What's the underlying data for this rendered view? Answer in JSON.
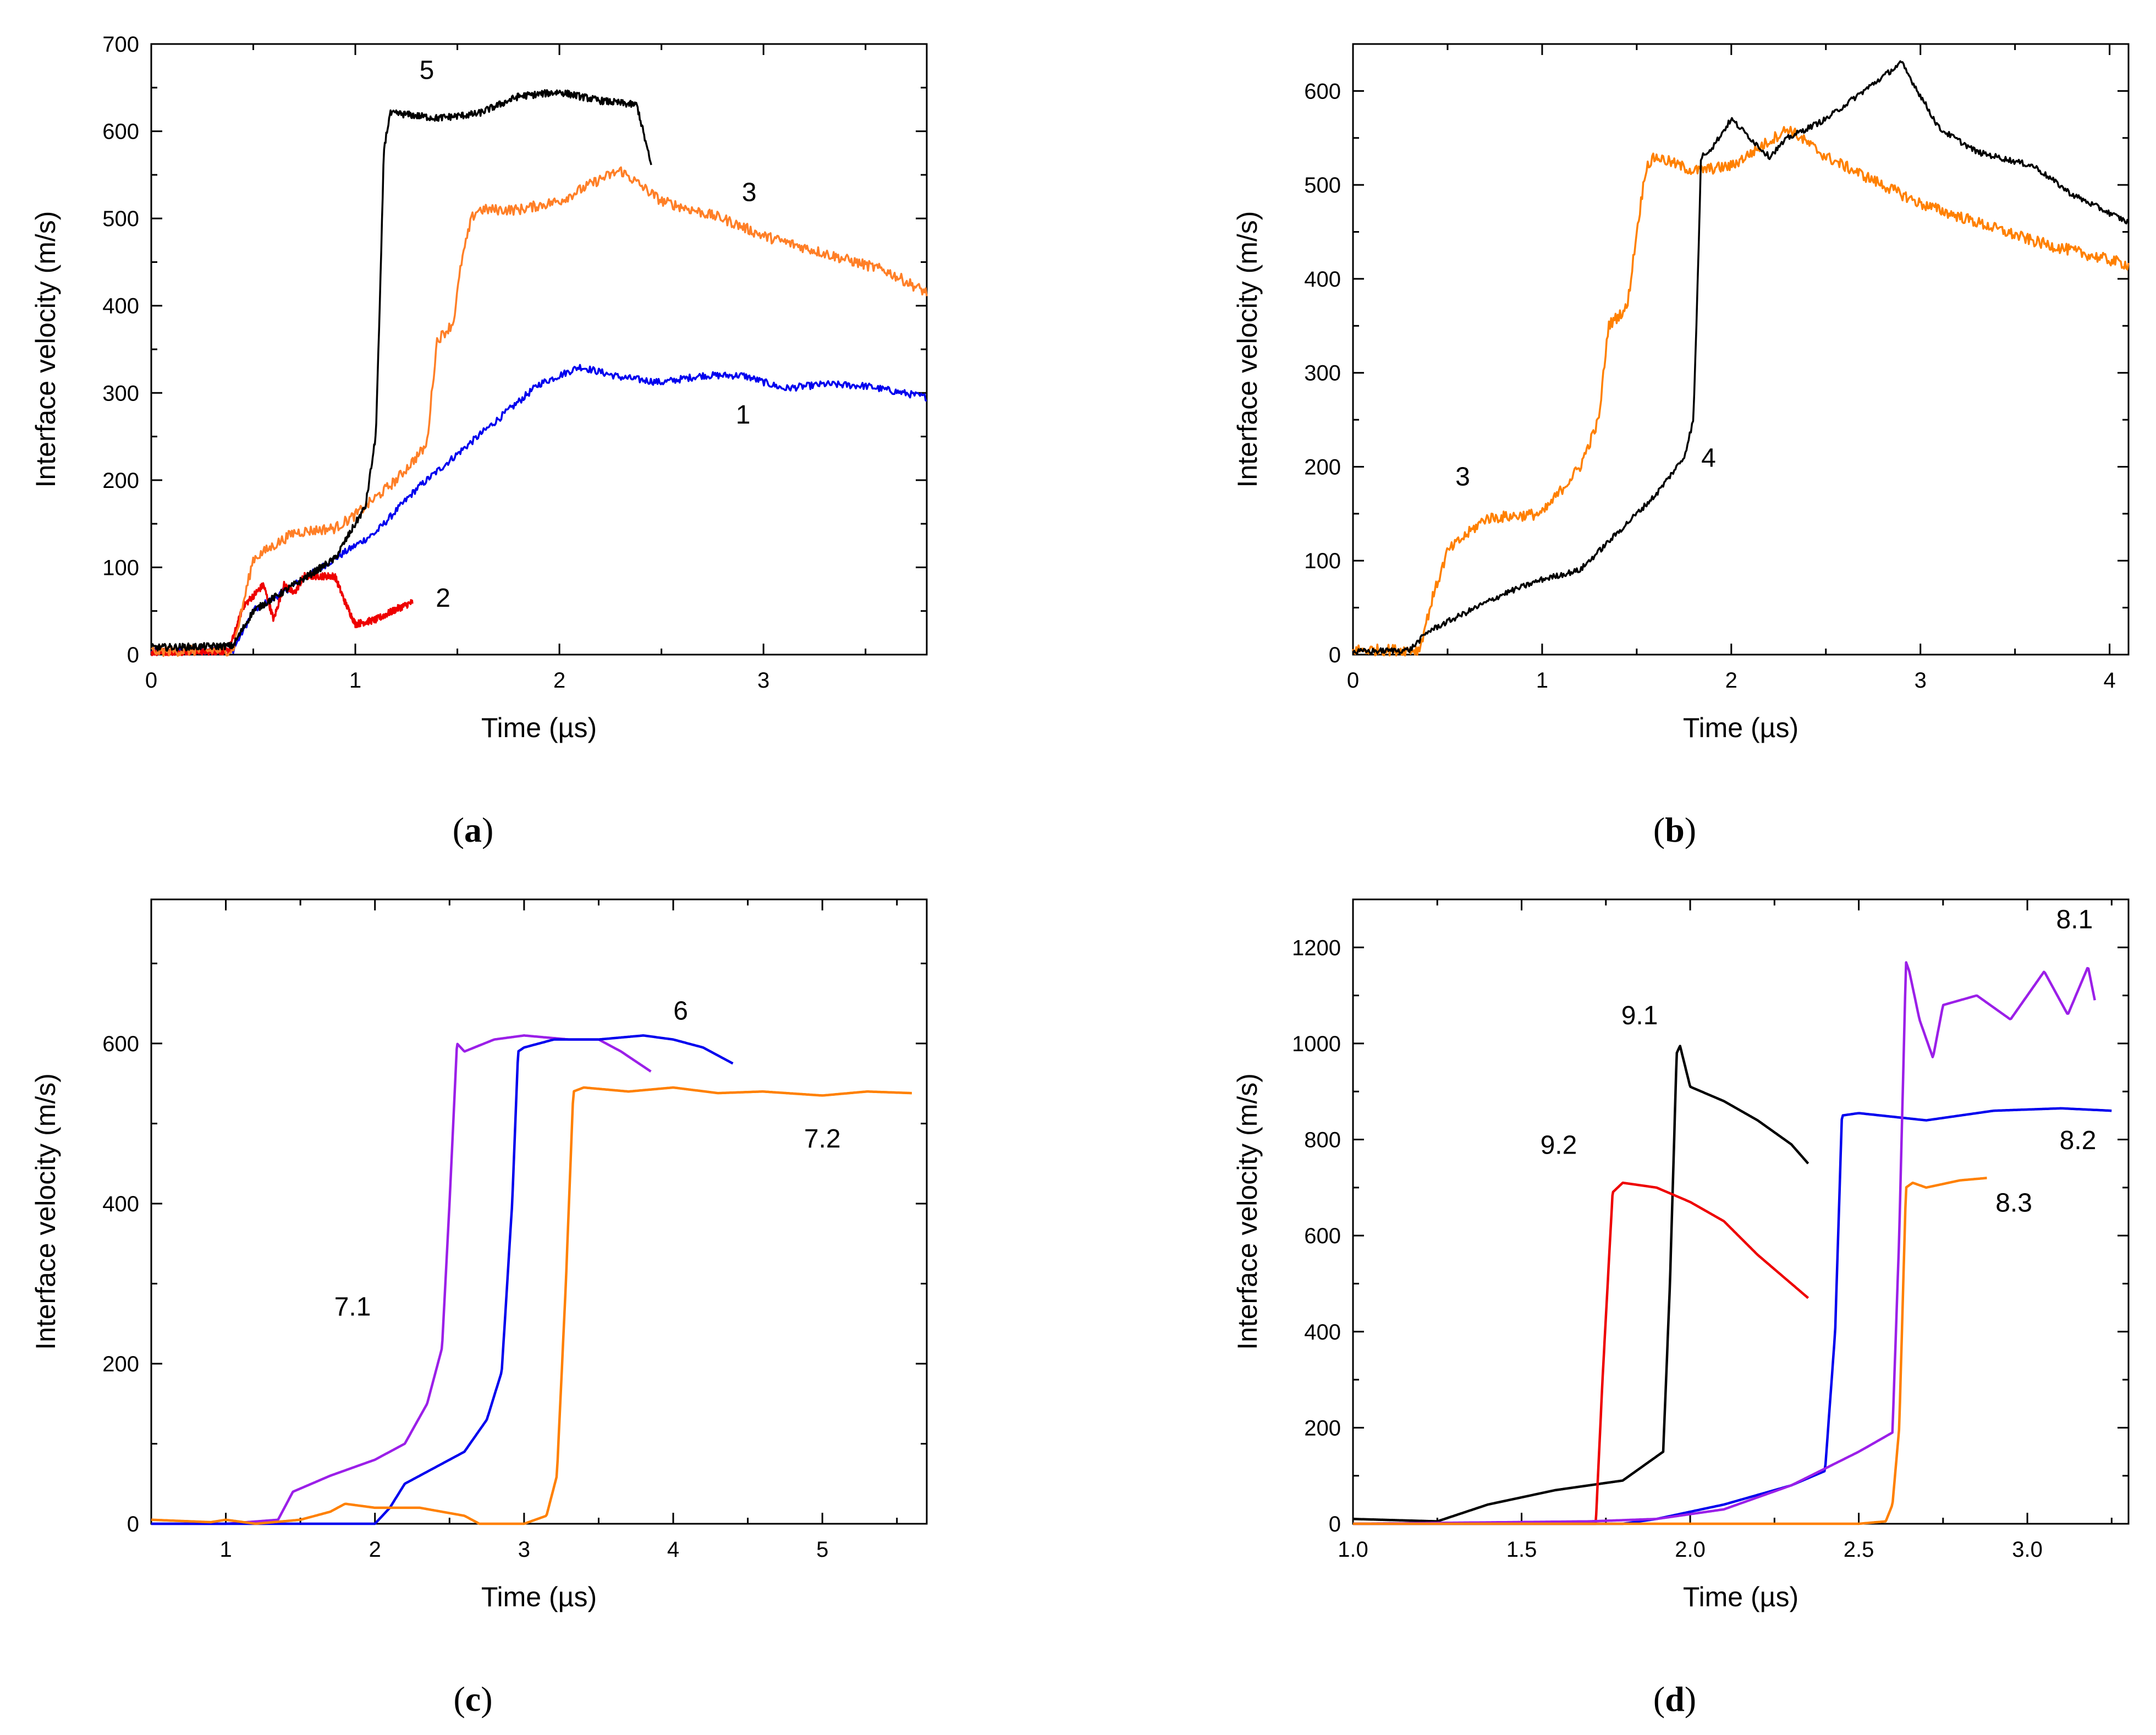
{
  "chart_data": [
    {
      "type": "line",
      "caption": "a",
      "xlabel": "Time (µs)",
      "ylabel": "Interface velocity (m/s)",
      "xlim": [
        0,
        3.8
      ],
      "ylim": [
        0,
        700
      ],
      "xticks": [
        0,
        1,
        2,
        3
      ],
      "yticks": [
        0,
        100,
        200,
        300,
        400,
        500,
        600,
        700
      ],
      "series": [
        {
          "name": "1",
          "color": "#0000ee",
          "noise": 4,
          "x": [
            0,
            0.4,
            0.5,
            0.7,
            0.9,
            1.1,
            1.3,
            1.5,
            1.7,
            1.9,
            2.1,
            2.3,
            2.5,
            2.7,
            2.9,
            3.1,
            3.3,
            3.5,
            3.8
          ],
          "y": [
            3,
            5,
            50,
            80,
            110,
            140,
            190,
            230,
            270,
            310,
            330,
            318,
            312,
            320,
            320,
            305,
            310,
            308,
            295
          ]
        },
        {
          "name": "2",
          "color": "#ee0000",
          "noise": 4,
          "x": [
            0,
            0.38,
            0.45,
            0.55,
            0.6,
            0.65,
            0.7,
            0.75,
            0.9,
            0.95,
            1.0,
            1.1,
            1.2,
            1.28
          ],
          "y": [
            3,
            4,
            55,
            80,
            40,
            80,
            70,
            90,
            90,
            60,
            35,
            40,
            52,
            60
          ]
        },
        {
          "name": "3",
          "color": "#ff7f27",
          "noise": 6,
          "x": [
            0,
            0.4,
            0.5,
            0.7,
            0.9,
            1.0,
            1.2,
            1.35,
            1.4,
            1.48,
            1.52,
            1.57,
            1.6,
            1.8,
            2.0,
            2.2,
            2.3,
            2.5,
            2.8,
            3.0,
            3.3,
            3.6,
            3.8
          ],
          "y": [
            4,
            5,
            110,
            140,
            145,
            160,
            200,
            240,
            360,
            380,
            450,
            500,
            510,
            510,
            520,
            545,
            555,
            520,
            500,
            480,
            460,
            440,
            415
          ]
        },
        {
          "name": "5",
          "color": "#000000",
          "noise": 4,
          "x": [
            0,
            0.4,
            0.5,
            0.7,
            0.9,
            1.05,
            1.1,
            1.12,
            1.14,
            1.17,
            1.22,
            1.4,
            1.6,
            1.8,
            2.0,
            2.2,
            2.38,
            2.42,
            2.45
          ],
          "y": [
            8,
            10,
            50,
            80,
            110,
            170,
            250,
            400,
            580,
            620,
            620,
            615,
            620,
            640,
            645,
            635,
            630,
            590,
            560
          ]
        }
      ],
      "labels": [
        {
          "text": "5",
          "x": 1.35,
          "y": 660
        },
        {
          "text": "3",
          "x": 2.93,
          "y": 520
        },
        {
          "text": "1",
          "x": 2.9,
          "y": 265
        },
        {
          "text": "2",
          "x": 1.43,
          "y": 55
        }
      ]
    },
    {
      "type": "line",
      "caption": "b",
      "xlabel": "Time (µs)",
      "ylabel": "Interface velocity (m/s)",
      "xlim": [
        0,
        4.1
      ],
      "ylim": [
        0,
        650
      ],
      "xticks": [
        0,
        1,
        2,
        3,
        4
      ],
      "yticks": [
        0,
        100,
        200,
        300,
        400,
        500,
        600
      ],
      "series": [
        {
          "name": "3",
          "color": "#ff8000",
          "noise": 6,
          "x": [
            0,
            0.35,
            0.42,
            0.5,
            0.7,
            1.0,
            1.2,
            1.3,
            1.35,
            1.45,
            1.5,
            1.55,
            1.6,
            1.8,
            2.0,
            2.3,
            2.5,
            2.8,
            3.0,
            3.3,
            3.6,
            3.9,
            4.1
          ],
          "y": [
            5,
            5,
            60,
            110,
            145,
            150,
            200,
            250,
            350,
            370,
            450,
            520,
            530,
            515,
            520,
            560,
            530,
            500,
            480,
            460,
            440,
            425,
            415
          ]
        },
        {
          "name": "4",
          "color": "#000000",
          "noise": 3,
          "x": [
            0,
            0.3,
            0.4,
            0.6,
            0.8,
            1.0,
            1.2,
            1.4,
            1.6,
            1.75,
            1.8,
            1.82,
            1.84,
            1.9,
            2.0,
            2.2,
            2.3,
            2.5,
            2.7,
            2.9,
            3.1,
            3.3,
            3.6,
            3.8,
            4.0,
            4.1
          ],
          "y": [
            3,
            5,
            25,
            45,
            65,
            80,
            90,
            130,
            170,
            210,
            250,
            380,
            530,
            540,
            570,
            530,
            550,
            570,
            600,
            630,
            560,
            535,
            520,
            490,
            470,
            460
          ]
        }
      ],
      "labels": [
        {
          "text": "3",
          "x": 0.58,
          "y": 180
        },
        {
          "text": "4",
          "x": 1.88,
          "y": 200
        }
      ]
    },
    {
      "type": "line",
      "caption": "c",
      "xlabel": "Time (µs)",
      "ylabel": "Interface velocity (m/s)",
      "xlim": [
        0.5,
        5.7
      ],
      "ylim": [
        0,
        780
      ],
      "xticks": [
        1,
        2,
        3,
        4,
        5
      ],
      "yticks": [
        0,
        200,
        400,
        600
      ],
      "series": [
        {
          "name": "7.1",
          "color": "#9b1fe8",
          "noise": 0,
          "x": [
            0.5,
            1.0,
            1.35,
            1.45,
            1.7,
            2.0,
            2.2,
            2.35,
            2.45,
            2.5,
            2.55,
            2.6,
            2.8,
            3.0,
            3.3,
            3.5,
            3.65,
            3.85
          ],
          "y": [
            0,
            0,
            5,
            40,
            60,
            80,
            100,
            150,
            220,
            400,
            600,
            590,
            605,
            610,
            605,
            605,
            590,
            565
          ]
        },
        {
          "name": "6",
          "color": "#0000ee",
          "noise": 0,
          "x": [
            0.5,
            1.0,
            1.5,
            2.0,
            2.1,
            2.2,
            2.4,
            2.6,
            2.75,
            2.85,
            2.92,
            2.96,
            3.0,
            3.2,
            3.5,
            3.8,
            4.0,
            4.2,
            4.4
          ],
          "y": [
            0,
            0,
            0,
            0,
            20,
            50,
            70,
            90,
            130,
            190,
            400,
            590,
            595,
            605,
            605,
            610,
            605,
            595,
            575
          ]
        },
        {
          "name": "7.2",
          "color": "#ff8000",
          "noise": 0,
          "x": [
            0.5,
            0.9,
            1.0,
            1.2,
            1.5,
            1.7,
            1.8,
            2.0,
            2.3,
            2.6,
            2.7,
            3.0,
            3.15,
            3.22,
            3.28,
            3.33,
            3.4,
            3.7,
            4.0,
            4.3,
            4.6,
            5.0,
            5.3,
            5.6
          ],
          "y": [
            5,
            2,
            5,
            0,
            5,
            15,
            25,
            20,
            20,
            10,
            0,
            0,
            10,
            60,
            300,
            540,
            545,
            540,
            545,
            538,
            540,
            535,
            540,
            538
          ]
        }
      ],
      "labels": [
        {
          "text": "7.1",
          "x": 1.85,
          "y": 260
        },
        {
          "text": "6",
          "x": 4.05,
          "y": 630
        },
        {
          "text": "7.2",
          "x": 5.0,
          "y": 470
        }
      ]
    },
    {
      "type": "line",
      "caption": "d",
      "xlabel": "Time (µs)",
      "ylabel": "Interface velocity (m/s)",
      "xlim": [
        1.0,
        3.3
      ],
      "ylim": [
        0,
        1300
      ],
      "xticks": [
        1.0,
        1.5,
        2.0,
        2.5,
        3.0
      ],
      "yticks": [
        0,
        200,
        400,
        600,
        800,
        1000,
        1200
      ],
      "series": [
        {
          "name": "9.1",
          "color": "#000000",
          "noise": 0,
          "x": [
            1.0,
            1.25,
            1.4,
            1.6,
            1.8,
            1.92,
            1.94,
            1.96,
            1.97,
            2.0,
            2.1,
            2.2,
            2.3,
            2.35
          ],
          "y": [
            10,
            5,
            40,
            70,
            90,
            150,
            500,
            980,
            995,
            910,
            880,
            840,
            790,
            750
          ]
        },
        {
          "name": "9.2",
          "color": "#ee0000",
          "noise": 0,
          "x": [
            1.0,
            1.72,
            1.74,
            1.77,
            1.8,
            1.9,
            2.0,
            2.1,
            2.2,
            2.3,
            2.35
          ],
          "y": [
            0,
            0,
            300,
            690,
            710,
            700,
            670,
            630,
            560,
            500,
            470
          ]
        },
        {
          "name": "8.2",
          "color": "#0000ee",
          "noise": 0,
          "x": [
            1.0,
            1.8,
            1.9,
            2.1,
            2.3,
            2.4,
            2.43,
            2.45,
            2.5,
            2.7,
            2.9,
            3.1,
            3.25
          ],
          "y": [
            0,
            0,
            10,
            40,
            80,
            110,
            400,
            850,
            855,
            840,
            860,
            865,
            860
          ]
        },
        {
          "name": "8.1",
          "color": "#9b1fe8",
          "noise": 0,
          "x": [
            1.0,
            1.7,
            1.9,
            2.1,
            2.3,
            2.5,
            2.6,
            2.62,
            2.64,
            2.65,
            2.68,
            2.72,
            2.75,
            2.85,
            2.95,
            3.05,
            3.12,
            3.18,
            3.2
          ],
          "y": [
            0,
            5,
            10,
            30,
            80,
            150,
            190,
            600,
            1170,
            1150,
            1050,
            970,
            1080,
            1100,
            1050,
            1150,
            1060,
            1160,
            1090
          ]
        },
        {
          "name": "8.3",
          "color": "#ff8000",
          "noise": 0,
          "x": [
            1.0,
            2.5,
            2.58,
            2.6,
            2.62,
            2.64,
            2.66,
            2.7,
            2.8,
            2.88
          ],
          "y": [
            0,
            0,
            5,
            40,
            200,
            700,
            710,
            700,
            715,
            720
          ]
        }
      ],
      "labels": [
        {
          "text": "9.1",
          "x": 1.85,
          "y": 1040
        },
        {
          "text": "9.2",
          "x": 1.61,
          "y": 770
        },
        {
          "text": "8.1",
          "x": 3.14,
          "y": 1240
        },
        {
          "text": "8.2",
          "x": 3.15,
          "y": 780
        },
        {
          "text": "8.3",
          "x": 2.96,
          "y": 650
        }
      ]
    }
  ]
}
